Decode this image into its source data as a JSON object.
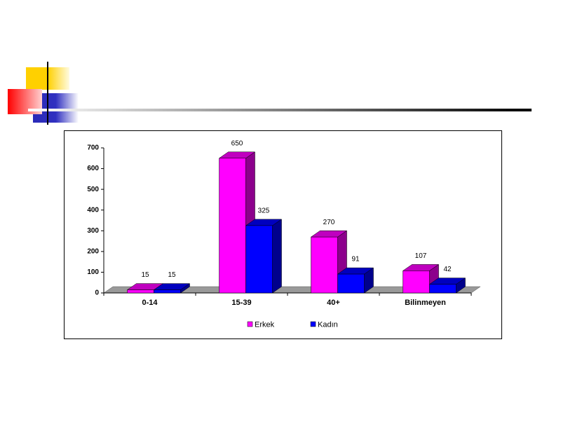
{
  "chart_data": {
    "type": "bar3d",
    "categories": [
      "0-14",
      "15-39",
      "40+",
      "Bilinmeyen"
    ],
    "series": [
      {
        "name": "Erkek",
        "color": "#ff00ff",
        "values": [
          15,
          650,
          270,
          107
        ]
      },
      {
        "name": "Kadın",
        "color": "#0000ff",
        "values": [
          15,
          325,
          91,
          42
        ]
      }
    ],
    "ylim": [
      0,
      700
    ],
    "yticks": [
      0,
      100,
      200,
      300,
      400,
      500,
      600,
      700
    ],
    "legend": "bottom"
  }
}
